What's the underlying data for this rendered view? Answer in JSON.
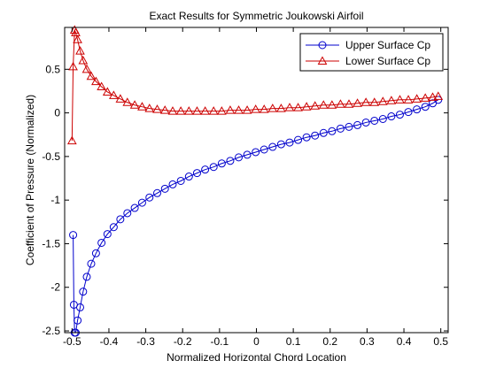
{
  "chart_data": {
    "type": "line",
    "title": "Exact Results for Symmetric Joukowski Airfoil",
    "xlabel": "Normalized Horizontal Chord Location",
    "ylabel": "Coefficient of Pressure (Normalized)",
    "xlim": [
      -0.52,
      0.52
    ],
    "ylim": [
      -2.52,
      0.98
    ],
    "xticks": [
      -0.5,
      -0.4,
      -0.3,
      -0.2,
      -0.1,
      0,
      0.1,
      0.2,
      0.3,
      0.4,
      0.5
    ],
    "xtick_labels": [
      "-0.5",
      "-0.4",
      "-0.3",
      "-0.2",
      "-0.1",
      "0",
      "0.1",
      "0.2",
      "0.3",
      "0.4",
      "0.5"
    ],
    "yticks": [
      -2.5,
      -2,
      -1.5,
      -1,
      -0.5,
      0,
      0.5
    ],
    "ytick_labels": [
      "-2.5",
      "-2",
      "-1.5",
      "-1",
      "-0.5",
      "0",
      "0.5"
    ],
    "grid": false,
    "legend_position": "top-right",
    "series": [
      {
        "name": "Upper Surface Cp",
        "color": "#0000cc",
        "marker": "circle",
        "x": [
          -0.497,
          -0.495,
          -0.493,
          -0.49,
          -0.485,
          -0.478,
          -0.47,
          -0.46,
          -0.448,
          -0.435,
          -0.42,
          -0.404,
          -0.387,
          -0.369,
          -0.35,
          -0.33,
          -0.31,
          -0.29,
          -0.269,
          -0.248,
          -0.227,
          -0.205,
          -0.183,
          -0.161,
          -0.139,
          -0.116,
          -0.094,
          -0.071,
          -0.048,
          -0.025,
          -0.002,
          0.021,
          0.044,
          0.067,
          0.09,
          0.113,
          0.136,
          0.159,
          0.182,
          0.205,
          0.228,
          0.251,
          0.274,
          0.297,
          0.32,
          0.343,
          0.366,
          0.389,
          0.412,
          0.435,
          0.458,
          0.478,
          0.493
        ],
        "y": [
          -1.4,
          -2.2,
          -2.52,
          -2.52,
          -2.38,
          -2.23,
          -2.05,
          -1.88,
          -1.73,
          -1.61,
          -1.49,
          -1.39,
          -1.31,
          -1.22,
          -1.15,
          -1.09,
          -1.03,
          -0.97,
          -0.92,
          -0.87,
          -0.82,
          -0.78,
          -0.73,
          -0.69,
          -0.65,
          -0.62,
          -0.58,
          -0.55,
          -0.51,
          -0.48,
          -0.45,
          -0.42,
          -0.39,
          -0.36,
          -0.34,
          -0.31,
          -0.28,
          -0.26,
          -0.23,
          -0.21,
          -0.18,
          -0.16,
          -0.14,
          -0.11,
          -0.09,
          -0.07,
          -0.04,
          -0.02,
          0.01,
          0.04,
          0.07,
          0.11,
          0.15
        ]
      },
      {
        "name": "Lower Surface Cp",
        "color": "#cc0000",
        "marker": "triangle",
        "x": [
          -0.5,
          -0.497,
          -0.493,
          -0.49,
          -0.485,
          -0.478,
          -0.47,
          -0.46,
          -0.448,
          -0.435,
          -0.42,
          -0.404,
          -0.387,
          -0.369,
          -0.35,
          -0.33,
          -0.31,
          -0.29,
          -0.269,
          -0.248,
          -0.227,
          -0.205,
          -0.183,
          -0.161,
          -0.139,
          -0.116,
          -0.094,
          -0.071,
          -0.048,
          -0.025,
          -0.002,
          0.021,
          0.044,
          0.067,
          0.09,
          0.113,
          0.136,
          0.159,
          0.182,
          0.205,
          0.228,
          0.251,
          0.274,
          0.297,
          0.32,
          0.343,
          0.366,
          0.389,
          0.412,
          0.435,
          0.458,
          0.478,
          0.493
        ],
        "y": [
          -0.32,
          0.53,
          0.95,
          0.92,
          0.84,
          0.71,
          0.6,
          0.5,
          0.42,
          0.36,
          0.3,
          0.24,
          0.2,
          0.16,
          0.12,
          0.09,
          0.07,
          0.05,
          0.04,
          0.03,
          0.02,
          0.02,
          0.02,
          0.02,
          0.02,
          0.02,
          0.02,
          0.03,
          0.03,
          0.03,
          0.04,
          0.04,
          0.05,
          0.05,
          0.06,
          0.06,
          0.07,
          0.08,
          0.09,
          0.09,
          0.1,
          0.1,
          0.11,
          0.12,
          0.12,
          0.13,
          0.14,
          0.15,
          0.15,
          0.16,
          0.17,
          0.18,
          0.19
        ]
      }
    ]
  }
}
